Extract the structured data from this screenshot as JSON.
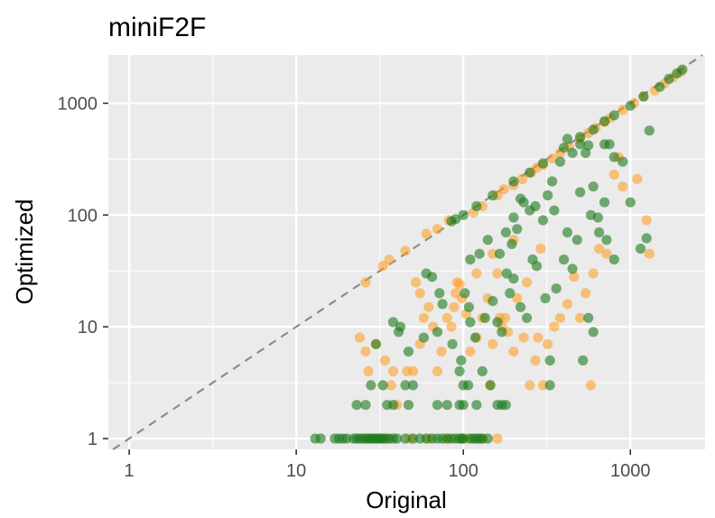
{
  "chart_data": {
    "type": "scatter",
    "title": "miniF2F",
    "xlabel": "Original",
    "ylabel": "Optimized",
    "xscale": "log10",
    "yscale": "log10",
    "xlim": [
      0.75,
      2800
    ],
    "ylim": [
      0.8,
      2700
    ],
    "xticks": [
      1,
      10,
      100,
      1000
    ],
    "xtick_labels": [
      "1",
      "10",
      "100",
      "1000"
    ],
    "yticks": [
      1,
      10,
      100,
      1000
    ],
    "ytick_labels": [
      "1",
      "10",
      "100",
      "1000"
    ],
    "grid": true,
    "reference_line": "y = x (dashed)",
    "series": [
      {
        "color": "#ff9a1a",
        "points": [
          [
            24,
            8
          ],
          [
            26,
            6
          ],
          [
            27,
            4
          ],
          [
            30,
            7
          ],
          [
            34,
            5
          ],
          [
            38,
            4
          ],
          [
            40,
            2
          ],
          [
            46,
            4
          ],
          [
            50,
            4
          ],
          [
            55,
            7
          ],
          [
            58,
            12
          ],
          [
            62,
            15
          ],
          [
            70,
            4
          ],
          [
            74,
            6
          ],
          [
            80,
            12
          ],
          [
            85,
            10
          ],
          [
            88,
            15
          ],
          [
            92,
            25
          ],
          [
            95,
            24
          ],
          [
            98,
            18
          ],
          [
            104,
            13
          ],
          [
            110,
            6
          ],
          [
            120,
            8
          ],
          [
            130,
            12
          ],
          [
            140,
            18
          ],
          [
            145,
            3
          ],
          [
            150,
            7
          ],
          [
            160,
            30
          ],
          [
            165,
            12
          ],
          [
            170,
            10
          ],
          [
            178,
            12
          ],
          [
            185,
            9
          ],
          [
            200,
            6
          ],
          [
            210,
            18
          ],
          [
            230,
            8
          ],
          [
            240,
            25
          ],
          [
            250,
            3
          ],
          [
            270,
            5
          ],
          [
            280,
            8
          ],
          [
            300,
            3
          ],
          [
            320,
            7
          ],
          [
            350,
            10
          ],
          [
            380,
            12
          ],
          [
            420,
            16
          ],
          [
            460,
            28
          ],
          [
            500,
            12
          ],
          [
            540,
            20
          ],
          [
            580,
            3
          ],
          [
            600,
            30
          ],
          [
            650,
            50
          ],
          [
            720,
            45
          ],
          [
            800,
            230
          ],
          [
            850,
            330
          ],
          [
            900,
            180
          ],
          [
            1100,
            210
          ],
          [
            1250,
            90
          ],
          [
            1300,
            45
          ],
          [
            26,
            25
          ],
          [
            33,
            35
          ],
          [
            36,
            40
          ],
          [
            45,
            48
          ],
          [
            60,
            68
          ],
          [
            70,
            75
          ],
          [
            82,
            90
          ],
          [
            115,
            105
          ],
          [
            130,
            120
          ],
          [
            160,
            150
          ],
          [
            175,
            170
          ],
          [
            200,
            185
          ],
          [
            225,
            210
          ],
          [
            255,
            240
          ],
          [
            275,
            265
          ],
          [
            300,
            280
          ],
          [
            340,
            320
          ],
          [
            380,
            360
          ],
          [
            430,
            410
          ],
          [
            500,
            480
          ],
          [
            560,
            540
          ],
          [
            620,
            600
          ],
          [
            700,
            680
          ],
          [
            760,
            740
          ],
          [
            900,
            870
          ],
          [
            1050,
            1000
          ],
          [
            1200,
            1150
          ],
          [
            1400,
            1300
          ],
          [
            1600,
            1500
          ],
          [
            1800,
            1700
          ],
          [
            2000,
            1900
          ],
          [
            27,
            1
          ],
          [
            35,
            1
          ],
          [
            48,
            1
          ],
          [
            62,
            1
          ],
          [
            80,
            1
          ],
          [
            105,
            1
          ],
          [
            130,
            1
          ],
          [
            160,
            1
          ],
          [
            37,
            3
          ],
          [
            52,
            25
          ],
          [
            66,
            10
          ],
          [
            55,
            20
          ],
          [
            90,
            20
          ],
          [
            120,
            30
          ],
          [
            150,
            45
          ],
          [
            200,
            60
          ],
          [
            290,
            50
          ]
        ]
      },
      {
        "color": "#1a7a1a",
        "points": [
          [
            13,
            1
          ],
          [
            14,
            1
          ],
          [
            17,
            1
          ],
          [
            18,
            1
          ],
          [
            19,
            1
          ],
          [
            20,
            1
          ],
          [
            22,
            1
          ],
          [
            23,
            1
          ],
          [
            24,
            1
          ],
          [
            25,
            1
          ],
          [
            26,
            1
          ],
          [
            27,
            1
          ],
          [
            28,
            1
          ],
          [
            29,
            1
          ],
          [
            30,
            1
          ],
          [
            31,
            1
          ],
          [
            32,
            1
          ],
          [
            33,
            1
          ],
          [
            34,
            1
          ],
          [
            36,
            1
          ],
          [
            38,
            1
          ],
          [
            40,
            1
          ],
          [
            45,
            1
          ],
          [
            50,
            1
          ],
          [
            55,
            1
          ],
          [
            60,
            1
          ],
          [
            65,
            1
          ],
          [
            70,
            1
          ],
          [
            75,
            1
          ],
          [
            80,
            1
          ],
          [
            85,
            1
          ],
          [
            90,
            1
          ],
          [
            95,
            1
          ],
          [
            98,
            1
          ],
          [
            100,
            1
          ],
          [
            110,
            1
          ],
          [
            115,
            1
          ],
          [
            120,
            1
          ],
          [
            125,
            1
          ],
          [
            130,
            1
          ],
          [
            140,
            1
          ],
          [
            23,
            2
          ],
          [
            26,
            2
          ],
          [
            35,
            2
          ],
          [
            38,
            2
          ],
          [
            47,
            2
          ],
          [
            70,
            2
          ],
          [
            80,
            2
          ],
          [
            95,
            2
          ],
          [
            100,
            2
          ],
          [
            120,
            2
          ],
          [
            160,
            2
          ],
          [
            170,
            2
          ],
          [
            180,
            2
          ],
          [
            28,
            3
          ],
          [
            33,
            3
          ],
          [
            45,
            3
          ],
          [
            50,
            3
          ],
          [
            100,
            3
          ],
          [
            107,
            3
          ],
          [
            145,
            3
          ],
          [
            330,
            3
          ],
          [
            30,
            7
          ],
          [
            38,
            11
          ],
          [
            41,
            9
          ],
          [
            47,
            6
          ],
          [
            42,
            10
          ],
          [
            58,
            8
          ],
          [
            70,
            9
          ],
          [
            72,
            20
          ],
          [
            75,
            16
          ],
          [
            86,
            7
          ],
          [
            95,
            4
          ],
          [
            97,
            5
          ],
          [
            102,
            20
          ],
          [
            108,
            15
          ],
          [
            110,
            11
          ],
          [
            118,
            8
          ],
          [
            130,
            4
          ],
          [
            135,
            12
          ],
          [
            150,
            17
          ],
          [
            160,
            11
          ],
          [
            170,
            9
          ],
          [
            182,
            30
          ],
          [
            190,
            20
          ],
          [
            200,
            27
          ],
          [
            220,
            15
          ],
          [
            240,
            12
          ],
          [
            260,
            40
          ],
          [
            275,
            35
          ],
          [
            310,
            18
          ],
          [
            330,
            5
          ],
          [
            360,
            22
          ],
          [
            400,
            40
          ],
          [
            420,
            70
          ],
          [
            450,
            33
          ],
          [
            480,
            60
          ],
          [
            520,
            5
          ],
          [
            560,
            12
          ],
          [
            600,
            9
          ],
          [
            650,
            70
          ],
          [
            720,
            60
          ],
          [
            800,
            40
          ],
          [
            580,
            100
          ],
          [
            200,
            95
          ],
          [
            230,
            130
          ],
          [
            380,
            300
          ],
          [
            450,
            360
          ],
          [
            500,
            430
          ],
          [
            560,
            420
          ],
          [
            600,
            180
          ],
          [
            700,
            430
          ],
          [
            750,
            430
          ],
          [
            800,
            330
          ],
          [
            900,
            300
          ],
          [
            1000,
            130
          ],
          [
            1300,
            570
          ],
          [
            1150,
            50
          ],
          [
            1250,
            62
          ],
          [
            180,
            70
          ],
          [
            195,
            55
          ],
          [
            210,
            75
          ],
          [
            220,
            140
          ],
          [
            250,
            110
          ],
          [
            270,
            120
          ],
          [
            300,
            90
          ],
          [
            320,
            150
          ],
          [
            340,
            200
          ],
          [
            350,
            110
          ],
          [
            420,
            480
          ],
          [
            500,
            160
          ],
          [
            540,
            360
          ],
          [
            640,
            95
          ],
          [
            700,
            130
          ],
          [
            85,
            88
          ],
          [
            90,
            92
          ],
          [
            100,
            100
          ],
          [
            120,
            120
          ],
          [
            150,
            150
          ],
          [
            200,
            200
          ],
          [
            250,
            240
          ],
          [
            300,
            290
          ],
          [
            400,
            400
          ],
          [
            500,
            500
          ],
          [
            600,
            580
          ],
          [
            700,
            690
          ],
          [
            800,
            780
          ],
          [
            1000,
            950
          ],
          [
            1200,
            1150
          ],
          [
            1500,
            1400
          ],
          [
            1700,
            1650
          ],
          [
            1900,
            1850
          ],
          [
            2050,
            2000
          ],
          [
            60,
            30
          ],
          [
            65,
            28
          ],
          [
            110,
            40
          ],
          [
            125,
            45
          ],
          [
            140,
            60
          ],
          [
            165,
            45
          ]
        ]
      }
    ]
  }
}
